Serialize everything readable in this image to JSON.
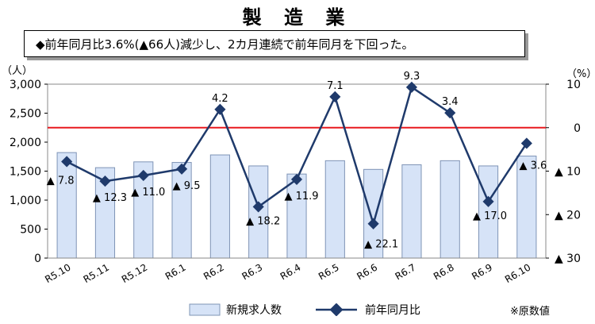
{
  "title": "製 造 業",
  "note": "◆前年同月比3.6%(▲66人)減少し、2カ月連続で前年同月を下回った。",
  "left_unit": "（人）",
  "right_unit": "（%）",
  "legend": {
    "bars": "新規求人数",
    "line": "前年同月比"
  },
  "footnote": "※原数値",
  "colors": {
    "bar_fill": "#d6e3f7",
    "bar_stroke": "#7f94b6",
    "line": "#1f3a6b",
    "ref_line": "#e8191f"
  },
  "chart_data": {
    "type": "bar",
    "categories": [
      "R5.10",
      "R5.11",
      "R5.12",
      "R6.1",
      "R6.2",
      "R6.3",
      "R6.4",
      "R6.5",
      "R6.6",
      "R6.7",
      "R6.8",
      "R6.9",
      "R6.10"
    ],
    "series": [
      {
        "name": "新規求人数",
        "type": "bar",
        "axis": "left",
        "values": [
          1820,
          1560,
          1660,
          1650,
          1780,
          1590,
          1450,
          1680,
          1530,
          1610,
          1680,
          1590,
          1760
        ]
      },
      {
        "name": "前年同月比",
        "type": "line",
        "axis": "right",
        "values": [
          -7.8,
          -12.3,
          -11.0,
          -9.5,
          4.2,
          -18.2,
          -11.9,
          7.1,
          -22.1,
          9.3,
          3.4,
          -17.0,
          -3.6
        ],
        "labels": [
          "▲ 7.8",
          "▲ 12.3",
          "▲ 11.0",
          "▲ 9.5",
          "4.2",
          "▲ 18.2",
          "▲ 11.9",
          "7.1",
          "▲ 22.1",
          "9.3",
          "3.4",
          "▲ 17.0",
          "▲ 3.6"
        ]
      }
    ],
    "y_left": {
      "lim": [
        0,
        3000
      ],
      "ticks": [
        0,
        500,
        1000,
        1500,
        2000,
        2500,
        3000
      ],
      "tick_labels": [
        "0",
        "500",
        "1,000",
        "1,500",
        "2,000",
        "2,500",
        "3,000"
      ]
    },
    "y_right": {
      "lim": [
        -30,
        10
      ],
      "ticks": [
        10,
        0,
        -10,
        -20,
        -30
      ],
      "tick_labels": [
        "10",
        "0",
        "▲ 10",
        "▲ 20",
        "▲ 30"
      ]
    },
    "reference_line": 0
  }
}
